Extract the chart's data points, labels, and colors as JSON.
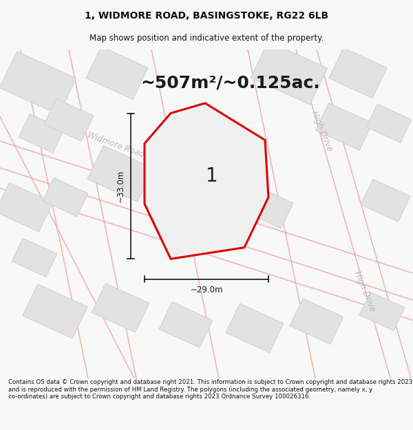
{
  "title": "1, WIDMORE ROAD, BASINGSTOKE, RG22 6LB",
  "subtitle": "Map shows position and indicative extent of the property.",
  "area_text": "~507m²/~0.125ac.",
  "label_number": "1",
  "dim_vertical": "~33.0m",
  "dim_horizontal": "~29.0m",
  "road_label1": "Widmore Road",
  "road_label2_top": "High Drive",
  "road_label2_bottom": "High Drive",
  "footer": "Contains OS data © Crown copyright and database right 2021. This information is subject to Crown copyright and database rights 2023 and is reproduced with the permission of HM Land Registry. The polygons (including the associated geometry, namely x, y co-ordinates) are subject to Crown copyright and database rights 2023 Ordnance Survey 100026316.",
  "bg_color": "#f8f8f8",
  "map_bg": "#f8f8f8",
  "building_fill": "#e2e2e2",
  "building_edge": "#d0d0d0",
  "road_line_color": "#f0a0a0",
  "property_edge": "#dd0000",
  "property_fill": "#f0f0f0",
  "title_fontsize": 10,
  "subtitle_fontsize": 8.5,
  "area_fontsize": 18,
  "footer_fontsize": 6.2,
  "road_label_color": "#bbbbbb",
  "dim_label_fontsize": 8.5,
  "num_label_fontsize": 20
}
